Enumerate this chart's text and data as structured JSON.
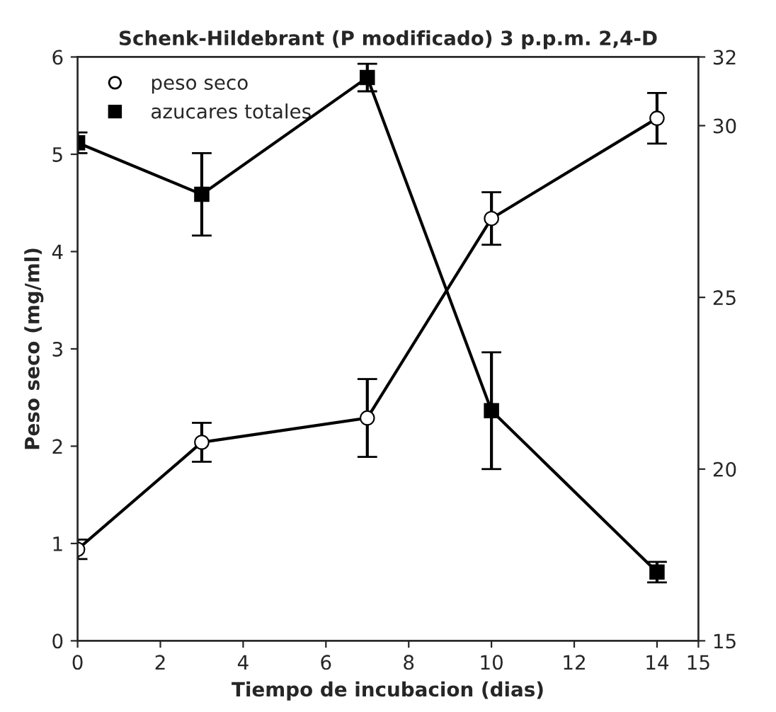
{
  "chart_data": {
    "type": "line",
    "title": "Schenk-Hildebrant (P modificado) 3 p.p.m. 2,4-D",
    "xlabel": "Tiempo de incubacion (dias)",
    "ylabel": "Peso seco (mg/ml)",
    "x": [
      0,
      3,
      7,
      10,
      14
    ],
    "series": [
      {
        "name": "peso seco",
        "color": "#000000",
        "marker": "circle",
        "values": [
          0.94,
          2.04,
          2.29,
          4.34,
          5.37
        ],
        "errors": [
          0.1,
          0.2,
          0.4,
          0.27,
          0.26
        ]
      },
      {
        "name": "azucares totales",
        "color": "#000000",
        "marker": "square",
        "axis": "y2",
        "values": [
          29.5,
          28.0,
          31.4,
          21.7,
          17.0
        ],
        "errors": [
          0.3,
          1.2,
          0.4,
          1.7,
          0.3
        ]
      }
    ],
    "xlim": [
      0,
      15
    ],
    "xticks": [
      0,
      2,
      4,
      6,
      8,
      10,
      12,
      14,
      15
    ],
    "ylim": [
      0,
      6
    ],
    "yticks": [
      0,
      1,
      2,
      3,
      4,
      5,
      6
    ],
    "y2lim": [
      15,
      32
    ],
    "y2ticks": [
      15,
      20,
      25,
      30,
      32
    ],
    "grid": false,
    "legend": "top left"
  }
}
